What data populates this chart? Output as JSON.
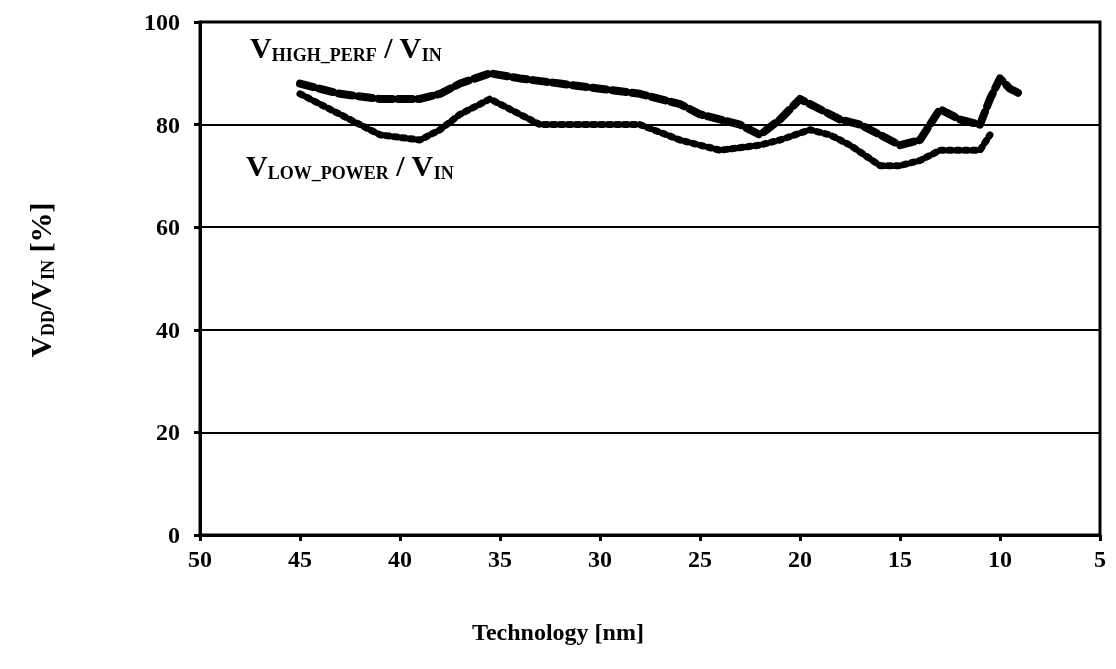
{
  "chart_data": {
    "type": "line",
    "xlabel": "Technology [nm]",
    "ylabel": "V$_{DD}$/V$_{IN}$ [%]",
    "xlim": [
      50,
      5
    ],
    "xticks": [
      50,
      45,
      40,
      35,
      30,
      25,
      20,
      15,
      10,
      5
    ],
    "ylim": [
      0,
      100
    ],
    "yticks": [
      0,
      20,
      40,
      60,
      80,
      100
    ],
    "grid": "y",
    "marker": "none",
    "legend": false,
    "series": [
      {
        "name": "V$_{HIGH_PERF}$ / V$_{IN}$",
        "color": "#000000",
        "line_style": "dashed",
        "x": [
          45,
          43,
          41,
          39,
          38,
          37,
          35.5,
          34,
          32,
          30,
          28,
          26,
          25,
          23,
          22,
          21,
          20,
          19,
          18,
          17,
          15,
          14,
          13.5,
          13,
          12,
          11,
          10.5,
          10,
          9.5,
          9
        ],
        "values": [
          88,
          86,
          85,
          85,
          86,
          88,
          90,
          89,
          88,
          87,
          86,
          84,
          82,
          80,
          78,
          81,
          85,
          83,
          81,
          80,
          76,
          77,
          80,
          83,
          81,
          80,
          85,
          89,
          87,
          86
        ]
      },
      {
        "name": "V$_{LOW_POWER}$ / V$_{IN}$",
        "color": "#000000",
        "line_style": "dotted",
        "x": [
          45,
          43,
          41,
          39,
          38,
          37,
          35.5,
          34,
          33,
          30,
          28,
          26,
          24,
          22,
          21,
          19.5,
          18.5,
          17.5,
          16,
          15,
          14,
          13,
          12,
          11,
          10.5
        ],
        "values": [
          86,
          82,
          78,
          77,
          79,
          82,
          85,
          82,
          80,
          80,
          80,
          77,
          75,
          76,
          77,
          79,
          78,
          76,
          72,
          72,
          73,
          75,
          75,
          75,
          78
        ]
      }
    ]
  }
}
